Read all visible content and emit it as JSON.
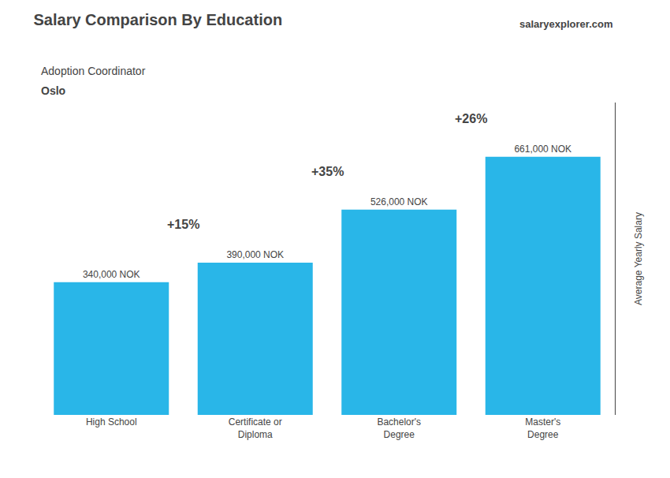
{
  "chart_data": {
    "type": "bar",
    "title": "Salary Comparison By Education",
    "subtitle": [
      "Adoption Coordinator",
      "Oslo"
    ],
    "watermark": "salaryexplorer.com",
    "y_label": "Average Yearly Salary",
    "categories": [
      "High School",
      "Certificate or\nDiploma",
      "Bachelor's\nDegree",
      "Master's\nDegree"
    ],
    "values": [
      340000,
      390000,
      526000,
      661000
    ],
    "value_labels": [
      "340,000 NOK",
      "390,000 NOK",
      "526,000 NOK",
      "661,000 NOK"
    ],
    "data_labels": true,
    "annotations": [
      "+15%",
      "+35%",
      "+26%"
    ],
    "color": "#29b6e8",
    "ylim": [
      0,
      800000
    ],
    "grid": false,
    "tick_labels": "x"
  }
}
